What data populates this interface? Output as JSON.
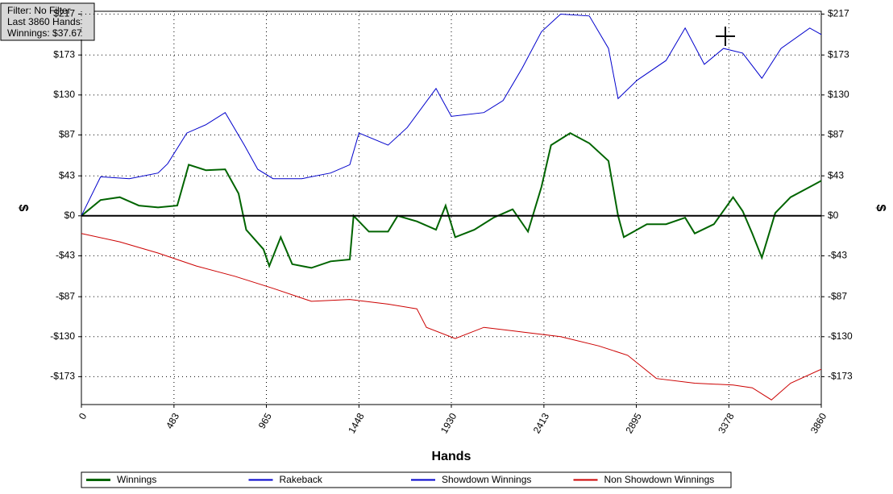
{
  "chart_data": {
    "type": "line",
    "info": [
      "Filter: No Filter",
      "Last  3860 Hands",
      "Winnings: $37.67"
    ],
    "x_label": "Hands",
    "y_label": "$",
    "y2_label": "$",
    "xlim": [
      0,
      3860
    ],
    "xticks": [
      0,
      483,
      965,
      1448,
      1930,
      2413,
      2895,
      3378,
      3860
    ],
    "ylim": [
      -203,
      220
    ],
    "yticks": [
      {
        "value": 217,
        "label": "$217"
      },
      {
        "value": 173,
        "label": "$173"
      },
      {
        "value": 130,
        "label": "$130"
      },
      {
        "value": 87,
        "label": "$87"
      },
      {
        "value": 43,
        "label": "$43"
      },
      {
        "value": 0,
        "label": "$0"
      },
      {
        "value": -43,
        "label": "-$43"
      },
      {
        "value": -87,
        "label": "-$87"
      },
      {
        "value": -130,
        "label": "-$130"
      },
      {
        "value": -173,
        "label": "-$173"
      }
    ],
    "grid": true,
    "zero_line": true,
    "series": [
      {
        "name": "Winnings",
        "color": "#006400",
        "width": 2,
        "x": [
          0,
          100,
          200,
          300,
          400,
          500,
          560,
          650,
          750,
          820,
          860,
          950,
          980,
          1040,
          1100,
          1200,
          1300,
          1400,
          1420,
          1500,
          1600,
          1650,
          1750,
          1850,
          1900,
          1950,
          2050,
          2150,
          2250,
          2330,
          2400,
          2450,
          2550,
          2650,
          2750,
          2800,
          2830,
          2950,
          3050,
          3150,
          3200,
          3300,
          3400,
          3450,
          3500,
          3550,
          3620,
          3700,
          3800,
          3860
        ],
        "values": [
          0,
          17,
          20,
          11,
          9,
          11,
          55,
          49,
          50,
          24,
          -15,
          -36,
          -54,
          -23,
          -52,
          -56,
          -49,
          -47,
          0,
          -17,
          -17,
          0,
          -6,
          -15,
          11,
          -23,
          -15,
          -2,
          7,
          -17,
          31,
          76,
          89,
          78,
          59,
          0,
          -23,
          -9,
          -9,
          -2,
          -19,
          -9,
          20,
          5,
          -19,
          -45,
          3,
          20,
          31,
          37.67
        ]
      },
      {
        "name": "Rakeback",
        "color": "#0000cc",
        "width": 1,
        "x": [
          0,
          3860
        ],
        "values": [
          0,
          0
        ]
      },
      {
        "name": "Showdown Winnings",
        "color": "#0000cc",
        "width": 1,
        "x": [
          0,
          100,
          250,
          400,
          450,
          550,
          650,
          750,
          850,
          920,
          1000,
          1150,
          1300,
          1400,
          1448,
          1600,
          1700,
          1850,
          1930,
          2100,
          2200,
          2300,
          2400,
          2500,
          2650,
          2750,
          2800,
          2900,
          3050,
          3150,
          3250,
          3350,
          3450,
          3550,
          3650,
          3800,
          3860
        ],
        "values": [
          0,
          42,
          40,
          46,
          56,
          89,
          98,
          111,
          76,
          50,
          40,
          40,
          46,
          55,
          89,
          76,
          95,
          137,
          107,
          111,
          124,
          159,
          198,
          217,
          215,
          180,
          126,
          146,
          167,
          202,
          163,
          180,
          175,
          148,
          180,
          202,
          195
        ]
      },
      {
        "name": "Non Showdown Winnings",
        "color": "#cc0000",
        "width": 1,
        "x": [
          0,
          200,
          400,
          600,
          800,
          1000,
          1200,
          1400,
          1600,
          1750,
          1800,
          1950,
          2100,
          2300,
          2500,
          2700,
          2850,
          3000,
          3200,
          3400,
          3500,
          3600,
          3700,
          3860
        ],
        "values": [
          -19,
          -28,
          -40,
          -54,
          -65,
          -78,
          -92,
          -90,
          -95,
          -100,
          -120,
          -132,
          -120,
          -125,
          -130,
          -140,
          -150,
          -175,
          -180,
          -182,
          -185,
          -198,
          -180,
          -165
        ]
      }
    ]
  }
}
